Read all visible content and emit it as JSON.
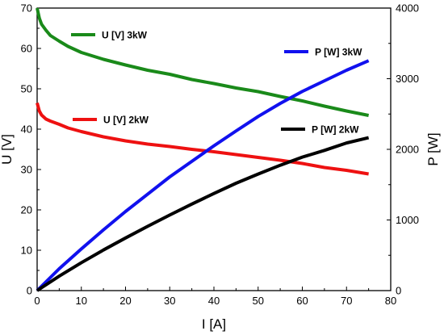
{
  "chart_data": {
    "type": "line",
    "xlabel": "I [A]",
    "ylabel_left": "U [V]",
    "ylabel_right": "P [W]",
    "xlim": [
      0,
      80
    ],
    "ylim_left": [
      0,
      70
    ],
    "ylim_right": [
      0,
      4000
    ],
    "xticks": [
      "0",
      "10",
      "20",
      "30",
      "40",
      "50",
      "60",
      "70",
      "80"
    ],
    "yticks_left": [
      "0",
      "10",
      "20",
      "30",
      "40",
      "50",
      "60",
      "70"
    ],
    "yticks_right": [
      "0",
      "1000",
      "2000",
      "3000",
      "4000"
    ],
    "grid": false,
    "series": [
      {
        "name": "U [V] 3kW",
        "axis": "left",
        "color": "#1a8a1a",
        "x": [
          0,
          0.5,
          1,
          2,
          3,
          5,
          7,
          10,
          15,
          20,
          25,
          30,
          35,
          40,
          45,
          50,
          55,
          60,
          65,
          70,
          75
        ],
        "y": [
          70,
          67.5,
          66,
          64.5,
          63.2,
          61.8,
          60.5,
          59,
          57.3,
          55.9,
          54.6,
          53.6,
          52.3,
          51.3,
          50.2,
          49.3,
          48.1,
          47,
          45.7,
          44.5,
          43.4
        ]
      },
      {
        "name": "U [V] 2kW",
        "axis": "left",
        "color": "#ee1111",
        "x": [
          0,
          0.5,
          1,
          2,
          3,
          5,
          7,
          10,
          15,
          20,
          25,
          30,
          35,
          40,
          45,
          50,
          55,
          60,
          65,
          70,
          75
        ],
        "y": [
          46.5,
          44.5,
          43.5,
          42.5,
          42,
          41.2,
          40.3,
          39.4,
          38.1,
          37.1,
          36.3,
          35.7,
          35,
          34.4,
          33.7,
          33,
          32.3,
          31.5,
          30.5,
          29.8,
          28.9
        ]
      },
      {
        "name": "P [W] 3kW",
        "axis": "right",
        "color": "#1111ee",
        "x": [
          0,
          5,
          10,
          15,
          20,
          25,
          30,
          35,
          40,
          45,
          50,
          55,
          60,
          65,
          70,
          75
        ],
        "y": [
          0,
          310,
          590,
          860,
          1120,
          1365,
          1610,
          1830,
          2050,
          2260,
          2465,
          2650,
          2820,
          2970,
          3120,
          3255
        ]
      },
      {
        "name": "P [W] 2kW",
        "axis": "right",
        "color": "#000000",
        "x": [
          0,
          5,
          10,
          15,
          20,
          25,
          30,
          35,
          40,
          45,
          50,
          55,
          60,
          65,
          70,
          75
        ],
        "y": [
          0,
          205,
          395,
          575,
          745,
          910,
          1070,
          1225,
          1375,
          1520,
          1650,
          1775,
          1890,
          1985,
          2090,
          2165
        ]
      }
    ]
  }
}
